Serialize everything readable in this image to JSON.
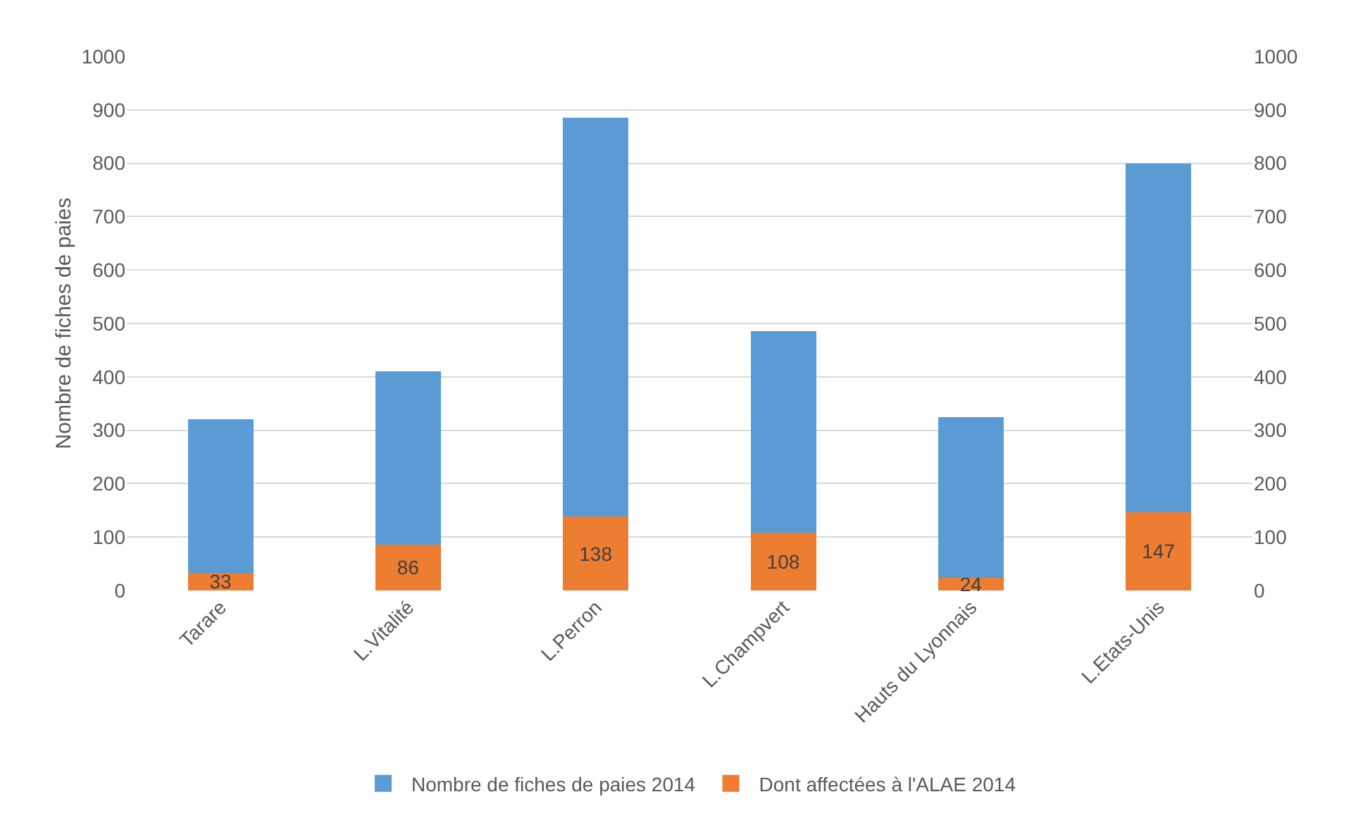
{
  "chart_data": {
    "type": "bar",
    "ylabel": "Nombre de fiches de paies",
    "categories": [
      "Tarare",
      "L.Vitalité",
      "L.Perron",
      "L.Champvert",
      "Hauts du Lyonnais",
      "L.Etats-Unis"
    ],
    "stacked": true,
    "series": [
      {
        "name": "Dont affectées à l'ALAE 2014",
        "color": "#ed7d31",
        "values": [
          33,
          86,
          138,
          108,
          24,
          147
        ],
        "value_labels": [
          "33",
          "86",
          "138",
          "108",
          "24",
          "147"
        ]
      },
      {
        "name": "Nombre de fiches de paies 2014",
        "color": "#5b9bd5",
        "values": [
          287,
          324,
          747,
          377,
          301,
          653
        ]
      }
    ],
    "ylim": [
      0,
      1000
    ],
    "yticks": [
      0,
      100,
      200,
      300,
      400,
      500,
      600,
      700,
      800,
      900,
      1000
    ],
    "y2lim": [
      0,
      1000
    ],
    "y2ticks": [
      0,
      100,
      200,
      300,
      400,
      500,
      600,
      700,
      800,
      900,
      1000
    ],
    "grid": "y",
    "legend": "bottom"
  }
}
